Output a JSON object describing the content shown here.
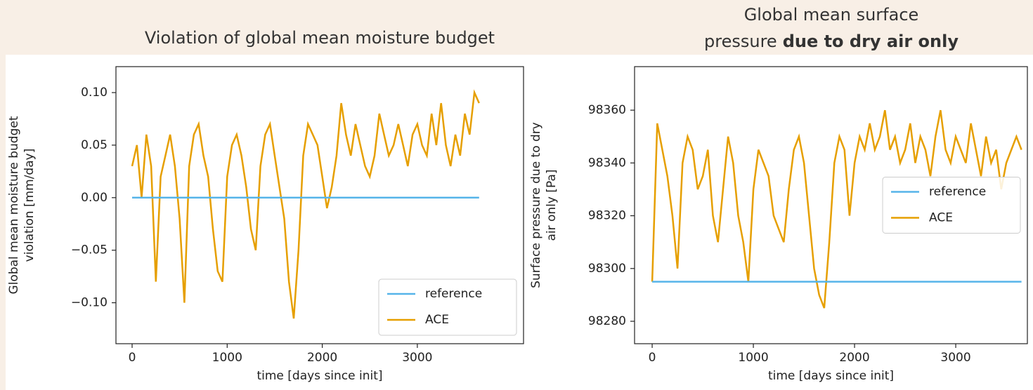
{
  "chart_data": [
    {
      "type": "line",
      "title": "Violation of global mean moisture budget",
      "ylabel": [
        "Global mean moisture budget",
        "violation [mm/day]"
      ],
      "xlabel": "time [days since init]",
      "xlim": [
        -170,
        4117
      ],
      "xticks": [
        0,
        1000,
        2000,
        3000
      ],
      "ylim": [
        -0.139,
        0.1247
      ],
      "yticks": [
        {
          "value": 0.1,
          "label": "0.10"
        },
        0.05,
        {
          "value": 0,
          "label": "0.00"
        },
        {
          "value": -0.05,
          "label": "−0.05"
        },
        {
          "value": -0.1,
          "label": "−0.10"
        }
      ],
      "legend": "lower right",
      "series": [
        {
          "name": "reference",
          "color": "#56b4e9",
          "x": [
            0,
            3650
          ],
          "values": [
            0,
            0
          ]
        },
        {
          "name": "ACE",
          "color": "#e69f00",
          "x": [
            0,
            50,
            100,
            150,
            200,
            250,
            300,
            350,
            400,
            450,
            500,
            550,
            600,
            650,
            700,
            750,
            800,
            850,
            900,
            950,
            1000,
            1050,
            1100,
            1150,
            1200,
            1250,
            1300,
            1350,
            1400,
            1450,
            1500,
            1550,
            1600,
            1650,
            1700,
            1750,
            1800,
            1850,
            1900,
            1950,
            2000,
            2050,
            2100,
            2150,
            2200,
            2250,
            2300,
            2350,
            2400,
            2450,
            2500,
            2550,
            2600,
            2650,
            2700,
            2750,
            2800,
            2850,
            2900,
            2950,
            3000,
            3050,
            3100,
            3150,
            3200,
            3250,
            3300,
            3350,
            3400,
            3450,
            3500,
            3550,
            3600,
            3650
          ],
          "values": [
            0.03,
            0.05,
            0.0,
            0.06,
            0.03,
            -0.08,
            0.02,
            0.04,
            0.06,
            0.03,
            -0.02,
            -0.1,
            0.03,
            0.06,
            0.07,
            0.04,
            0.02,
            -0.03,
            -0.07,
            -0.08,
            0.02,
            0.05,
            0.06,
            0.04,
            0.01,
            -0.03,
            -0.05,
            0.03,
            0.06,
            0.07,
            0.04,
            0.01,
            -0.02,
            -0.08,
            -0.115,
            -0.05,
            0.04,
            0.07,
            0.06,
            0.05,
            0.02,
            -0.01,
            0.01,
            0.04,
            0.09,
            0.06,
            0.04,
            0.07,
            0.05,
            0.03,
            0.02,
            0.04,
            0.08,
            0.06,
            0.04,
            0.05,
            0.07,
            0.05,
            0.03,
            0.06,
            0.07,
            0.05,
            0.04,
            0.08,
            0.05,
            0.09,
            0.05,
            0.03,
            0.06,
            0.04,
            0.08,
            0.06,
            0.1,
            0.09
          ]
        }
      ]
    },
    {
      "type": "line",
      "title": [
        "Global mean surface",
        "pressure"
      ],
      "title_bold": "due to dry air only",
      "ylabel": [
        "Surface pressure due to dry",
        "air only [Pa]"
      ],
      "xlabel": "time [days since init]",
      "xlim": [
        -174,
        3708
      ],
      "xticks": [
        0,
        1000,
        2000,
        3000
      ],
      "ylim": [
        98271.5,
        98376.5
      ],
      "yticks": [
        98360,
        98340,
        98320,
        98300,
        98280
      ],
      "legend": "center right",
      "series": [
        {
          "name": "reference",
          "color": "#56b4e9",
          "x": [
            0,
            3650
          ],
          "values": [
            98295,
            98295
          ]
        },
        {
          "name": "ACE",
          "color": "#e69f00",
          "x": [
            0,
            50,
            100,
            150,
            200,
            250,
            300,
            350,
            400,
            450,
            500,
            550,
            600,
            650,
            700,
            750,
            800,
            850,
            900,
            950,
            1000,
            1050,
            1100,
            1150,
            1200,
            1250,
            1300,
            1350,
            1400,
            1450,
            1500,
            1550,
            1600,
            1650,
            1700,
            1750,
            1800,
            1850,
            1900,
            1950,
            2000,
            2050,
            2100,
            2150,
            2200,
            2250,
            2300,
            2350,
            2400,
            2450,
            2500,
            2550,
            2600,
            2650,
            2700,
            2750,
            2800,
            2850,
            2900,
            2950,
            3000,
            3050,
            3100,
            3150,
            3200,
            3250,
            3300,
            3350,
            3400,
            3450,
            3500,
            3550,
            3600,
            3650
          ],
          "values": [
            98295,
            98355,
            98345,
            98335,
            98320,
            98300,
            98340,
            98350,
            98345,
            98330,
            98335,
            98345,
            98320,
            98310,
            98330,
            98350,
            98340,
            98320,
            98310,
            98295,
            98330,
            98345,
            98340,
            98335,
            98320,
            98315,
            98310,
            98330,
            98345,
            98350,
            98340,
            98320,
            98300,
            98290,
            98285,
            98310,
            98340,
            98350,
            98345,
            98320,
            98340,
            98350,
            98345,
            98355,
            98345,
            98350,
            98360,
            98345,
            98350,
            98340,
            98345,
            98355,
            98340,
            98350,
            98345,
            98335,
            98350,
            98360,
            98345,
            98340,
            98350,
            98345,
            98340,
            98355,
            98345,
            98335,
            98350,
            98340,
            98345,
            98330,
            98340,
            98345,
            98350,
            98345
          ]
        }
      ]
    }
  ]
}
